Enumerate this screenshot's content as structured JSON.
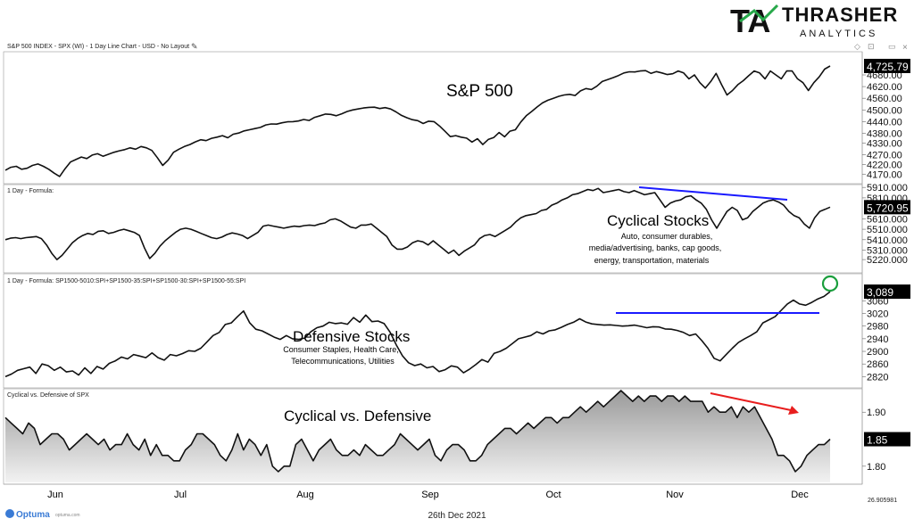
{
  "brand": {
    "name": "THRASHER",
    "sub": "ANALYTICS",
    "logo_letters": "TA"
  },
  "header": {
    "title": "S&P 500 INDEX - SPX (WI) - 1 Day Line Chart - USD - No Layout",
    "close": "×",
    "diamond": "◇",
    "pin": "⊡"
  },
  "footer": {
    "date": "26th Dec 2021",
    "optuma": "Optuma",
    "site": "optuma.com",
    "coord": "26.905981"
  },
  "colors": {
    "line": "#111111",
    "trend": "#1a1aff",
    "arrow": "#e81e1e",
    "circle": "#1a9e3c",
    "fill_top": "#9a9a9a",
    "fill_bottom": "#f2f2f2"
  },
  "chart_data": [
    {
      "type": "line",
      "id": "spx",
      "panel_label": "",
      "title": "S&P 500",
      "last_value": "4,725.79",
      "ylim": [
        4130,
        4790
      ],
      "yticks": [
        "4680.00",
        "4620.00",
        "4560.00",
        "4500.00",
        "4440.00",
        "4380.00",
        "4330.00",
        "4270.00",
        "4220.00",
        "4170.00"
      ],
      "ytick_values": [
        4680,
        4620,
        4560,
        4500,
        4440,
        4380,
        4330,
        4270,
        4220,
        4170
      ],
      "values": [
        4190,
        4205,
        4210,
        4195,
        4200,
        4215,
        4222,
        4210,
        4195,
        4175,
        4158,
        4198,
        4232,
        4245,
        4258,
        4250,
        4268,
        4275,
        4262,
        4272,
        4282,
        4290,
        4296,
        4305,
        4298,
        4312,
        4305,
        4292,
        4255,
        4215,
        4242,
        4282,
        4298,
        4312,
        4322,
        4336,
        4347,
        4342,
        4354,
        4360,
        4368,
        4357,
        4375,
        4381,
        4392,
        4398,
        4404,
        4410,
        4423,
        4428,
        4427,
        4434,
        4439,
        4440,
        4443,
        4451,
        4446,
        4462,
        4470,
        4479,
        4477,
        4470,
        4480,
        4492,
        4500,
        4505,
        4510,
        4513,
        4514,
        4507,
        4512,
        4505,
        4490,
        4472,
        4460,
        4450,
        4445,
        4430,
        4442,
        4440,
        4418,
        4391,
        4363,
        4368,
        4360,
        4355,
        4335,
        4352,
        4322,
        4348,
        4358,
        4384,
        4362,
        4391,
        4398,
        4438,
        4470,
        4492,
        4515,
        4536,
        4550,
        4560,
        4570,
        4577,
        4580,
        4574,
        4598,
        4610,
        4605,
        4622,
        4646,
        4656,
        4666,
        4677,
        4690,
        4696,
        4695,
        4700,
        4702,
        4688,
        4697,
        4690,
        4682,
        4686,
        4700,
        4690,
        4660,
        4680,
        4640,
        4612,
        4646,
        4688,
        4630,
        4577,
        4600,
        4630,
        4650,
        4676,
        4700,
        4690,
        4660,
        4700,
        4680,
        4660,
        4700,
        4700,
        4660,
        4640,
        4600,
        4640,
        4670,
        4710,
        4726
      ],
      "annotation_text": []
    },
    {
      "type": "line",
      "id": "cyclical",
      "panel_label": "1 Day - Formula:",
      "title": "Cyclical Stocks",
      "last_value": "5,720.95",
      "ylim": [
        5110,
        5920
      ],
      "yticks": [
        "5910.000",
        "5810.000",
        "5610.000",
        "5510.000",
        "5410.000",
        "5310.000",
        "5220.000"
      ],
      "ytick_values": [
        5910,
        5810,
        5610,
        5510,
        5410,
        5310,
        5220
      ],
      "values": [
        5410,
        5425,
        5430,
        5420,
        5430,
        5435,
        5440,
        5420,
        5360,
        5280,
        5220,
        5260,
        5320,
        5380,
        5420,
        5450,
        5470,
        5460,
        5490,
        5495,
        5470,
        5480,
        5498,
        5510,
        5495,
        5480,
        5450,
        5330,
        5230,
        5280,
        5350,
        5400,
        5440,
        5480,
        5510,
        5520,
        5510,
        5490,
        5470,
        5450,
        5430,
        5420,
        5435,
        5460,
        5475,
        5465,
        5450,
        5420,
        5450,
        5480,
        5540,
        5550,
        5540,
        5530,
        5520,
        5530,
        5540,
        5535,
        5545,
        5550,
        5545,
        5560,
        5570,
        5600,
        5610,
        5590,
        5560,
        5530,
        5520,
        5550,
        5550,
        5560,
        5520,
        5480,
        5440,
        5360,
        5320,
        5320,
        5340,
        5380,
        5400,
        5390,
        5360,
        5400,
        5360,
        5320,
        5280,
        5310,
        5260,
        5300,
        5330,
        5360,
        5420,
        5450,
        5460,
        5440,
        5470,
        5500,
        5530,
        5580,
        5620,
        5640,
        5650,
        5660,
        5690,
        5700,
        5740,
        5760,
        5790,
        5810,
        5840,
        5850,
        5870,
        5890,
        5880,
        5900,
        5860,
        5870,
        5880,
        5890,
        5870,
        5860,
        5880,
        5860,
        5840,
        5850,
        5860,
        5790,
        5720,
        5760,
        5780,
        5790,
        5820,
        5830,
        5790,
        5760,
        5700,
        5600,
        5520,
        5600,
        5680,
        5720,
        5690,
        5600,
        5620,
        5680,
        5720,
        5760,
        5780,
        5790,
        5770,
        5740,
        5680,
        5640,
        5620,
        5560,
        5520,
        5620,
        5680,
        5700,
        5721
      ],
      "annotation_text": [
        "Auto, consumer durables,",
        "media/advertising, banks, cap goods,",
        "energy, transportation, materials"
      ]
    },
    {
      "type": "line",
      "id": "defensive",
      "panel_label": "1 Day - Formula: SP1500-5010:SPI+SP1500-35:SPI+SP1500-30:SPI+SP1500-55:SPI",
      "title": "Defensive Stocks",
      "last_value": "3,089",
      "ylim": [
        2790,
        3140
      ],
      "yticks": [
        "3060",
        "3020",
        "2980",
        "2940",
        "2900",
        "2860",
        "2820"
      ],
      "ytick_values": [
        3060,
        3020,
        2980,
        2940,
        2900,
        2860,
        2820
      ],
      "values": [
        2820,
        2828,
        2840,
        2845,
        2850,
        2830,
        2860,
        2855,
        2840,
        2850,
        2835,
        2838,
        2825,
        2848,
        2830,
        2852,
        2844,
        2862,
        2870,
        2882,
        2876,
        2890,
        2885,
        2880,
        2895,
        2880,
        2872,
        2890,
        2886,
        2893,
        2902,
        2900,
        2910,
        2930,
        2950,
        2960,
        2985,
        2990,
        3010,
        3028,
        2990,
        2970,
        2965,
        2955,
        2945,
        2938,
        2950,
        2940,
        2938,
        2942,
        2962,
        2975,
        2980,
        2992,
        2988,
        2990,
        2986,
        3007,
        2992,
        3015,
        2994,
        2996,
        2988,
        2960,
        2920,
        2886,
        2864,
        2855,
        2860,
        2848,
        2852,
        2836,
        2842,
        2854,
        2850,
        2832,
        2844,
        2858,
        2874,
        2866,
        2894,
        2900,
        2910,
        2925,
        2940,
        2945,
        2950,
        2962,
        2955,
        2965,
        2968,
        2976,
        2985,
        2992,
        3003,
        2993,
        2987,
        2985,
        2983,
        2984,
        2982,
        2980,
        2981,
        2983,
        2979,
        2975,
        2978,
        2977,
        2971,
        2970,
        2966,
        2960,
        2950,
        2955,
        2934,
        2910,
        2878,
        2870,
        2890,
        2910,
        2928,
        2940,
        2950,
        2962,
        2990,
        3000,
        3010,
        3030,
        3050,
        3062,
        3050,
        3046,
        3055,
        3066,
        3074,
        3089
      ],
      "annotation_text": [
        "Consumer Staples, Health Care,",
        "Telecommunications, Utilities"
      ]
    },
    {
      "type": "area",
      "id": "ratio",
      "panel_label": "Cyclical vs. Defensive of SPX",
      "title": "Cyclical vs. Defensive",
      "last_value": "1.85",
      "ylim": [
        1.77,
        1.94
      ],
      "yticks": [
        "1.90",
        "1.80"
      ],
      "ytick_values": [
        1.9,
        1.8
      ],
      "values": [
        1.89,
        1.88,
        1.87,
        1.86,
        1.88,
        1.87,
        1.84,
        1.85,
        1.86,
        1.86,
        1.85,
        1.83,
        1.84,
        1.85,
        1.86,
        1.85,
        1.84,
        1.85,
        1.83,
        1.84,
        1.84,
        1.86,
        1.84,
        1.83,
        1.85,
        1.82,
        1.84,
        1.82,
        1.82,
        1.81,
        1.81,
        1.83,
        1.84,
        1.86,
        1.86,
        1.85,
        1.84,
        1.82,
        1.81,
        1.83,
        1.86,
        1.83,
        1.85,
        1.84,
        1.82,
        1.84,
        1.8,
        1.79,
        1.8,
        1.8,
        1.84,
        1.85,
        1.83,
        1.81,
        1.83,
        1.84,
        1.85,
        1.83,
        1.82,
        1.82,
        1.83,
        1.82,
        1.84,
        1.83,
        1.82,
        1.82,
        1.83,
        1.84,
        1.86,
        1.85,
        1.84,
        1.83,
        1.84,
        1.85,
        1.82,
        1.81,
        1.83,
        1.84,
        1.84,
        1.83,
        1.81,
        1.81,
        1.82,
        1.84,
        1.85,
        1.86,
        1.87,
        1.87,
        1.86,
        1.87,
        1.88,
        1.87,
        1.88,
        1.89,
        1.89,
        1.88,
        1.89,
        1.89,
        1.9,
        1.91,
        1.9,
        1.91,
        1.92,
        1.91,
        1.92,
        1.93,
        1.94,
        1.93,
        1.92,
        1.93,
        1.92,
        1.93,
        1.93,
        1.92,
        1.93,
        1.93,
        1.92,
        1.93,
        1.92,
        1.92,
        1.92,
        1.9,
        1.91,
        1.9,
        1.9,
        1.91,
        1.89,
        1.91,
        1.9,
        1.91,
        1.89,
        1.87,
        1.85,
        1.82,
        1.82,
        1.81,
        1.79,
        1.8,
        1.82,
        1.83,
        1.84,
        1.84,
        1.85
      ],
      "annotation_text": []
    }
  ],
  "x_axis": {
    "labels": [
      "Jun",
      "Jul",
      "Aug",
      "Sep",
      "Oct",
      "Nov",
      "Dec"
    ]
  }
}
